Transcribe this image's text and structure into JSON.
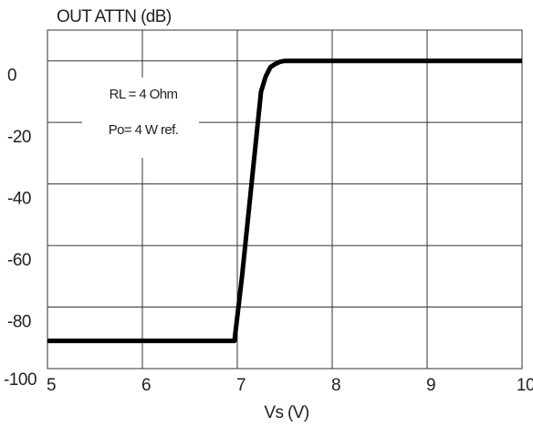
{
  "chart_data": {
    "type": "line",
    "title": "",
    "ylabel": "OUT ATTN (dB)",
    "xlabel": "Vs (V)",
    "xlim": [
      5,
      10
    ],
    "ylim": [
      -100,
      10
    ],
    "x_ticks": [
      5,
      6,
      7,
      8,
      9,
      10
    ],
    "x_tick_labels": [
      "5",
      "6",
      "7",
      "8",
      "9",
      "10"
    ],
    "y_ticks": [
      0,
      -20,
      -40,
      -60,
      -80,
      -100
    ],
    "y_tick_labels": [
      "0",
      "-20",
      "-40",
      "-60",
      "-80",
      "-100"
    ],
    "grid": true,
    "legend": "none",
    "annotations": [
      "RL = 4 Ohm",
      "Po= 4 W ref."
    ],
    "colors": {
      "line": "#000000",
      "grid": "#333333",
      "background": "#ffffff"
    },
    "series": [
      {
        "x": [
          5.0,
          6.0,
          6.97,
          7.05,
          7.1,
          7.15,
          7.2,
          7.25,
          7.3,
          7.35,
          7.4,
          7.45,
          7.5,
          8.0,
          9.0,
          10.0
        ],
        "y": [
          -91,
          -91,
          -91,
          -70,
          -55,
          -40,
          -25,
          -10,
          -5,
          -2,
          -1,
          -0.3,
          0,
          0,
          0,
          0
        ]
      }
    ]
  }
}
